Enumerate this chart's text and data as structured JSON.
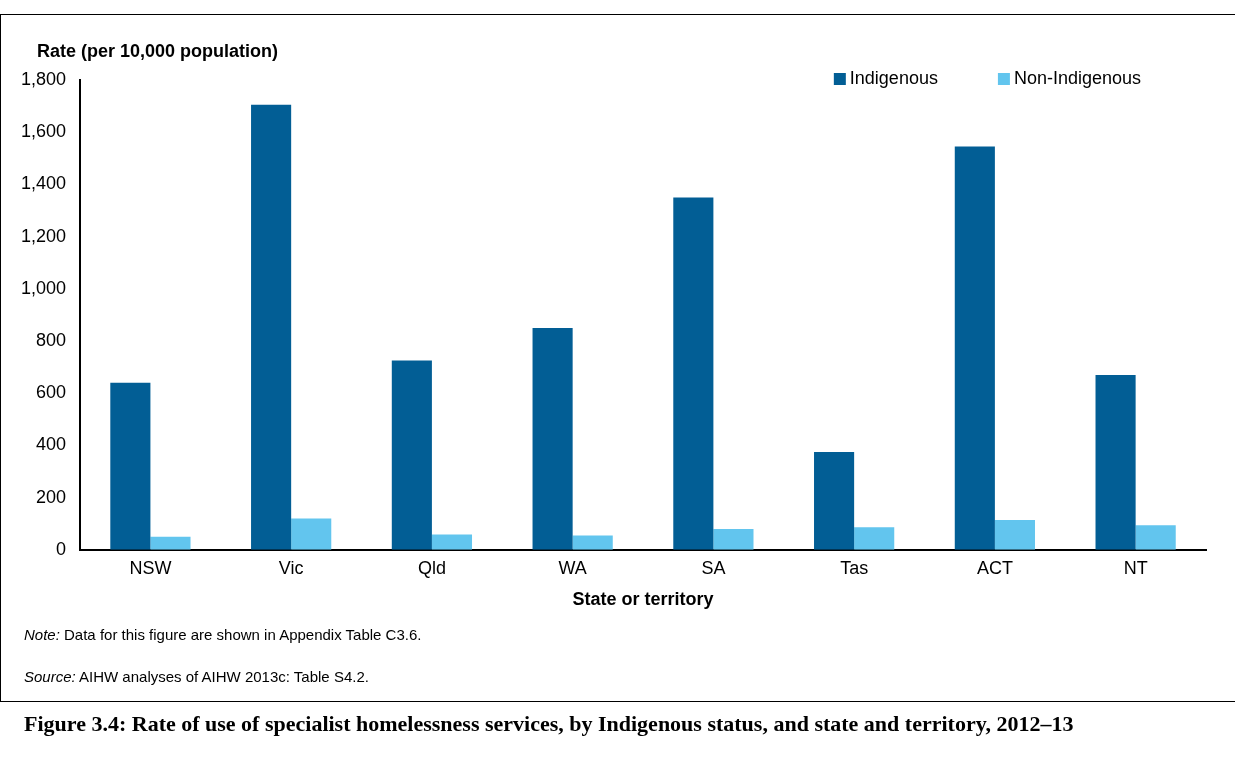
{
  "chart_data": {
    "type": "bar",
    "title": "Figure 3.4: Rate of use of specialist homelessness services, by Indigenous status, and state and territory, 2012–13",
    "ylabel": "Rate (per 10,000 population)",
    "xlabel": "State or territory",
    "categories": [
      "NSW",
      "Vic",
      "Qld",
      "WA",
      "SA",
      "Tas",
      "ACT",
      "NT"
    ],
    "series": [
      {
        "name": "Indigenous",
        "color": "#025e95",
        "values": [
          640,
          1705,
          725,
          850,
          1350,
          375,
          1545,
          670
        ]
      },
      {
        "name": "Non-Indigenous",
        "color": "#62c5ee",
        "values": [
          50,
          120,
          59,
          55,
          80,
          86,
          114,
          94
        ]
      }
    ],
    "ylim": [
      0,
      1800
    ],
    "yticks": [
      0,
      {
        "value": 200,
        "label": "200"
      },
      {
        "value": 400,
        "label": "400"
      },
      {
        "value": 600,
        "label": "600"
      },
      {
        "value": 800,
        "label": "800"
      },
      {
        "value": 1000,
        "label": "1,000"
      },
      {
        "value": 1200,
        "label": "1,200"
      },
      {
        "value": 1400,
        "label": "1,400"
      },
      {
        "value": 1600,
        "label": "1,600"
      },
      {
        "value": 1800,
        "label": "1,800"
      }
    ],
    "grid": false,
    "legend": "top right",
    "annotations": [
      "Note: Data for this figure are shown in Appendix Table C3.6.",
      "Source: AIHW analyses of AIHW 2013c: Table S4.2."
    ]
  }
}
